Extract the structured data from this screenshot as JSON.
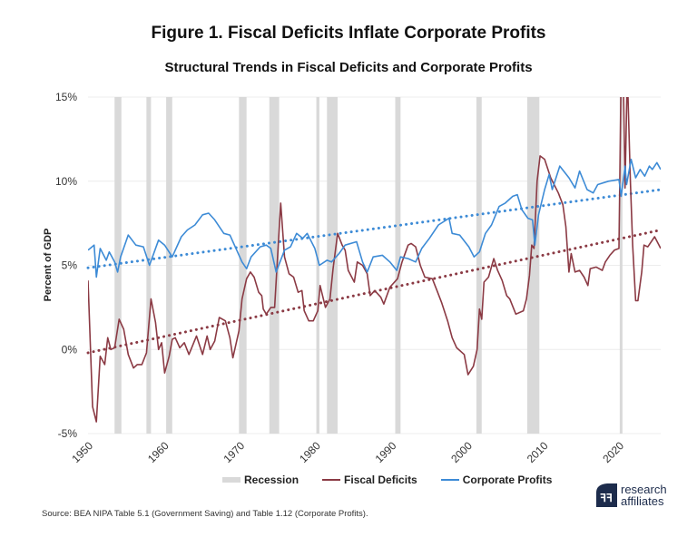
{
  "title": "Figure 1. Fiscal Deficits Inflate Corporate Profits",
  "subtitle": "Structural Trends in Fiscal Deficits and Corporate Profits",
  "source": "Source: BEA NIPA Table 5.1 (Government Saving) and Table 1.12 (Corporate Profits).",
  "logo": {
    "line1": "research",
    "line2": "affiliates",
    "color": "#1d2c4c"
  },
  "chart_data": {
    "type": "line",
    "title": "Structural Trends in Fiscal Deficits and Corporate Profits",
    "xlabel": "",
    "ylabel": "Percent of GDP",
    "xlim": [
      1950,
      2025.5
    ],
    "ylim": [
      -5,
      15
    ],
    "x_ticks": [
      "1950",
      "1960",
      "1970",
      "1980",
      "1990",
      "2000",
      "2010",
      "2020"
    ],
    "y_ticks": [
      "-5%",
      "0%",
      "5%",
      "10%",
      "15%"
    ],
    "grid": true,
    "legend_position": "bottom",
    "legend": [
      "Recession",
      "Fiscal Deficits",
      "Corporate Profits"
    ],
    "colors": {
      "recession": "#d9d9d9",
      "fiscal": "#8b3a44",
      "profits": "#3d8bd6"
    },
    "recessions": [
      [
        1953.5,
        1954.4
      ],
      [
        1957.7,
        1958.3
      ],
      [
        1960.3,
        1961.1
      ],
      [
        1969.9,
        1970.9
      ],
      [
        1973.9,
        1975.2
      ],
      [
        1980.1,
        1980.5
      ],
      [
        1981.5,
        1982.9
      ],
      [
        1990.5,
        1991.2
      ],
      [
        2001.2,
        2001.9
      ],
      [
        2007.9,
        2009.5
      ],
      [
        2020.1,
        2020.3
      ]
    ],
    "series": [
      {
        "name": "Fiscal Deficits",
        "trend": [
          [
            1950,
            -0.2
          ],
          [
            2025.5,
            7.1
          ]
        ],
        "points": [
          [
            1950,
            4.1
          ],
          [
            1950.6,
            -3.4
          ],
          [
            1951.1,
            -4.3
          ],
          [
            1951.6,
            -0.4
          ],
          [
            1952.2,
            -0.9
          ],
          [
            1952.6,
            0.7
          ],
          [
            1953,
            0
          ],
          [
            1953.5,
            0.1
          ],
          [
            1954.1,
            1.8
          ],
          [
            1954.7,
            1.2
          ],
          [
            1955.3,
            -0.3
          ],
          [
            1956,
            -1.1
          ],
          [
            1956.5,
            -0.9
          ],
          [
            1957.1,
            -0.9
          ],
          [
            1957.7,
            -0.2
          ],
          [
            1958.3,
            3.0
          ],
          [
            1958.9,
            1.6
          ],
          [
            1959.3,
            0
          ],
          [
            1959.7,
            0.4
          ],
          [
            1960.1,
            -1.4
          ],
          [
            1960.7,
            -0.4
          ],
          [
            1961.1,
            0.6
          ],
          [
            1961.5,
            0.7
          ],
          [
            1962.1,
            0.1
          ],
          [
            1962.7,
            0.4
          ],
          [
            1963.3,
            -0.3
          ],
          [
            1964.3,
            0.8
          ],
          [
            1965.1,
            -0.3
          ],
          [
            1965.7,
            0.8
          ],
          [
            1966.1,
            0
          ],
          [
            1966.7,
            0.5
          ],
          [
            1967.3,
            1.9
          ],
          [
            1968.1,
            1.7
          ],
          [
            1968.7,
            0.7
          ],
          [
            1969.1,
            -0.5
          ],
          [
            1969.9,
            1.1
          ],
          [
            1970.3,
            3.0
          ],
          [
            1970.9,
            4.2
          ],
          [
            1971.4,
            4.6
          ],
          [
            1971.9,
            4.3
          ],
          [
            1972.5,
            3.4
          ],
          [
            1972.9,
            3.2
          ],
          [
            1973.1,
            2.4
          ],
          [
            1973.5,
            2.1
          ],
          [
            1974.1,
            2.5
          ],
          [
            1974.6,
            2.5
          ],
          [
            1975.4,
            8.7
          ],
          [
            1975.9,
            5.5
          ],
          [
            1976.5,
            4.5
          ],
          [
            1977.1,
            4.3
          ],
          [
            1977.7,
            3.4
          ],
          [
            1978.2,
            3.5
          ],
          [
            1978.5,
            2.3
          ],
          [
            1979.1,
            1.7
          ],
          [
            1979.7,
            1.7
          ],
          [
            1980.3,
            2.3
          ],
          [
            1980.6,
            3.8
          ],
          [
            1981.3,
            2.5
          ],
          [
            1981.9,
            3.0
          ],
          [
            1982.3,
            4.8
          ],
          [
            1982.9,
            6.9
          ],
          [
            1983.5,
            6.2
          ],
          [
            1983.9,
            5.9
          ],
          [
            1984.3,
            4.7
          ],
          [
            1985.1,
            4.0
          ],
          [
            1985.5,
            5.2
          ],
          [
            1986.2,
            5.0
          ],
          [
            1986.8,
            4.5
          ],
          [
            1987.2,
            3.2
          ],
          [
            1987.8,
            3.5
          ],
          [
            1988.6,
            3.1
          ],
          [
            1989,
            2.7
          ],
          [
            1989.8,
            3.7
          ],
          [
            1990.8,
            4.2
          ],
          [
            1991.4,
            5.2
          ],
          [
            1992.2,
            6.2
          ],
          [
            1992.6,
            6.3
          ],
          [
            1993.2,
            6.1
          ],
          [
            1993.8,
            5.0
          ],
          [
            1994.4,
            4.3
          ],
          [
            1995.4,
            4.2
          ],
          [
            1996,
            3.5
          ],
          [
            1996.6,
            2.8
          ],
          [
            1997.4,
            1.7
          ],
          [
            1998,
            0.7
          ],
          [
            1998.6,
            0.1
          ],
          [
            1999.6,
            -0.3
          ],
          [
            2000.1,
            -1.5
          ],
          [
            2000.8,
            -1.0
          ],
          [
            2001.3,
            0
          ],
          [
            2001.6,
            2.4
          ],
          [
            2001.9,
            1.8
          ],
          [
            2002.2,
            4.0
          ],
          [
            2002.8,
            4.3
          ],
          [
            2003.5,
            5.4
          ],
          [
            2004,
            4.7
          ],
          [
            2004.6,
            4.1
          ],
          [
            2005.2,
            3.2
          ],
          [
            2005.6,
            3.0
          ],
          [
            2006.4,
            2.1
          ],
          [
            2007.4,
            2.3
          ],
          [
            2007.8,
            3.0
          ],
          [
            2008.2,
            4.4
          ],
          [
            2008.5,
            6.2
          ],
          [
            2008.8,
            6.0
          ],
          [
            2009.2,
            10.0
          ],
          [
            2009.6,
            11.5
          ],
          [
            2010.2,
            11.3
          ],
          [
            2011,
            10.2
          ],
          [
            2012,
            9.3
          ],
          [
            2012.6,
            8.6
          ],
          [
            2013,
            7.3
          ],
          [
            2013.4,
            4.6
          ],
          [
            2013.7,
            5.7
          ],
          [
            2014.2,
            4.6
          ],
          [
            2014.8,
            4.7
          ],
          [
            2015.4,
            4.3
          ],
          [
            2015.9,
            3.8
          ],
          [
            2016.2,
            4.8
          ],
          [
            2017,
            4.9
          ],
          [
            2017.8,
            4.7
          ],
          [
            2018.2,
            5.2
          ],
          [
            2018.8,
            5.6
          ],
          [
            2019.4,
            5.9
          ],
          [
            2020,
            6.0
          ],
          [
            2020.3,
            17.0
          ],
          [
            2020.6,
            15.5
          ],
          [
            2020.8,
            9.6
          ],
          [
            2021.1,
            16.5
          ],
          [
            2021.5,
            10.0
          ],
          [
            2021.8,
            6.2
          ],
          [
            2022.2,
            2.9
          ],
          [
            2022.5,
            2.9
          ],
          [
            2023,
            4.6
          ],
          [
            2023.3,
            6.2
          ],
          [
            2023.8,
            6.1
          ],
          [
            2024.7,
            6.7
          ],
          [
            2025.5,
            6.0
          ]
        ]
      },
      {
        "name": "Corporate Profits",
        "trend": [
          [
            1950,
            4.85
          ],
          [
            2025.5,
            9.5
          ]
        ],
        "points": [
          [
            1950,
            5.9
          ],
          [
            1950.8,
            6.2
          ],
          [
            1951.1,
            4.3
          ],
          [
            1951.6,
            6.0
          ],
          [
            1952.4,
            5.3
          ],
          [
            1952.8,
            5.8
          ],
          [
            1953.5,
            5.2
          ],
          [
            1953.9,
            4.6
          ],
          [
            1954.3,
            5.5
          ],
          [
            1955.3,
            6.8
          ],
          [
            1956.3,
            6.2
          ],
          [
            1957.3,
            6.1
          ],
          [
            1958.1,
            5.0
          ],
          [
            1959.3,
            6.5
          ],
          [
            1960.1,
            6.2
          ],
          [
            1961.1,
            5.5
          ],
          [
            1962.3,
            6.7
          ],
          [
            1963.1,
            7.1
          ],
          [
            1964.1,
            7.4
          ],
          [
            1965.1,
            8.0
          ],
          [
            1965.9,
            8.1
          ],
          [
            1966.7,
            7.7
          ],
          [
            1967.9,
            6.9
          ],
          [
            1968.7,
            6.8
          ],
          [
            1969.5,
            6.0
          ],
          [
            1970.3,
            5.2
          ],
          [
            1970.9,
            4.8
          ],
          [
            1971.5,
            5.5
          ],
          [
            1972.7,
            6.1
          ],
          [
            1973.5,
            6.2
          ],
          [
            1974.1,
            6.0
          ],
          [
            1974.8,
            4.6
          ],
          [
            1975.9,
            5.9
          ],
          [
            1976.7,
            6.1
          ],
          [
            1977.5,
            6.9
          ],
          [
            1978.3,
            6.6
          ],
          [
            1978.9,
            6.9
          ],
          [
            1979.9,
            6.0
          ],
          [
            1980.5,
            5.0
          ],
          [
            1981.5,
            5.3
          ],
          [
            1982.1,
            5.2
          ],
          [
            1983.1,
            5.7
          ],
          [
            1983.9,
            6.2
          ],
          [
            1985.4,
            6.4
          ],
          [
            1986.2,
            5.2
          ],
          [
            1986.8,
            4.6
          ],
          [
            1987.6,
            5.5
          ],
          [
            1988.8,
            5.6
          ],
          [
            1989.8,
            5.2
          ],
          [
            1990.7,
            4.7
          ],
          [
            1991.2,
            5.5
          ],
          [
            1992.2,
            5.4
          ],
          [
            1993.2,
            5.2
          ],
          [
            1994,
            6.0
          ],
          [
            1995,
            6.6
          ],
          [
            1996.2,
            7.4
          ],
          [
            1997.6,
            7.8
          ],
          [
            1998,
            6.9
          ],
          [
            1999,
            6.8
          ],
          [
            2000.2,
            6.1
          ],
          [
            2000.9,
            5.5
          ],
          [
            2001.6,
            5.8
          ],
          [
            2002.4,
            6.9
          ],
          [
            2003.2,
            7.4
          ],
          [
            2004.2,
            8.5
          ],
          [
            2005,
            8.7
          ],
          [
            2006,
            9.1
          ],
          [
            2006.6,
            9.2
          ],
          [
            2007.2,
            8.3
          ],
          [
            2008,
            7.8
          ],
          [
            2008.6,
            7.7
          ],
          [
            2008.9,
            6.2
          ],
          [
            2009.4,
            8.0
          ],
          [
            2010.2,
            9.5
          ],
          [
            2010.8,
            10.4
          ],
          [
            2011.2,
            9.5
          ],
          [
            2012.2,
            10.9
          ],
          [
            2013.4,
            10.2
          ],
          [
            2014.2,
            9.6
          ],
          [
            2014.8,
            10.6
          ],
          [
            2015.8,
            9.5
          ],
          [
            2016.6,
            9.3
          ],
          [
            2017.2,
            9.8
          ],
          [
            2018.6,
            10.0
          ],
          [
            2020,
            10.1
          ],
          [
            2020.3,
            9.1
          ],
          [
            2020.8,
            10.9
          ],
          [
            2021,
            9.8
          ],
          [
            2021.6,
            11.3
          ],
          [
            2022.2,
            10.2
          ],
          [
            2022.8,
            10.7
          ],
          [
            2023.4,
            10.3
          ],
          [
            2024,
            10.9
          ],
          [
            2024.4,
            10.7
          ],
          [
            2025,
            11.1
          ],
          [
            2025.5,
            10.7
          ]
        ]
      }
    ]
  }
}
